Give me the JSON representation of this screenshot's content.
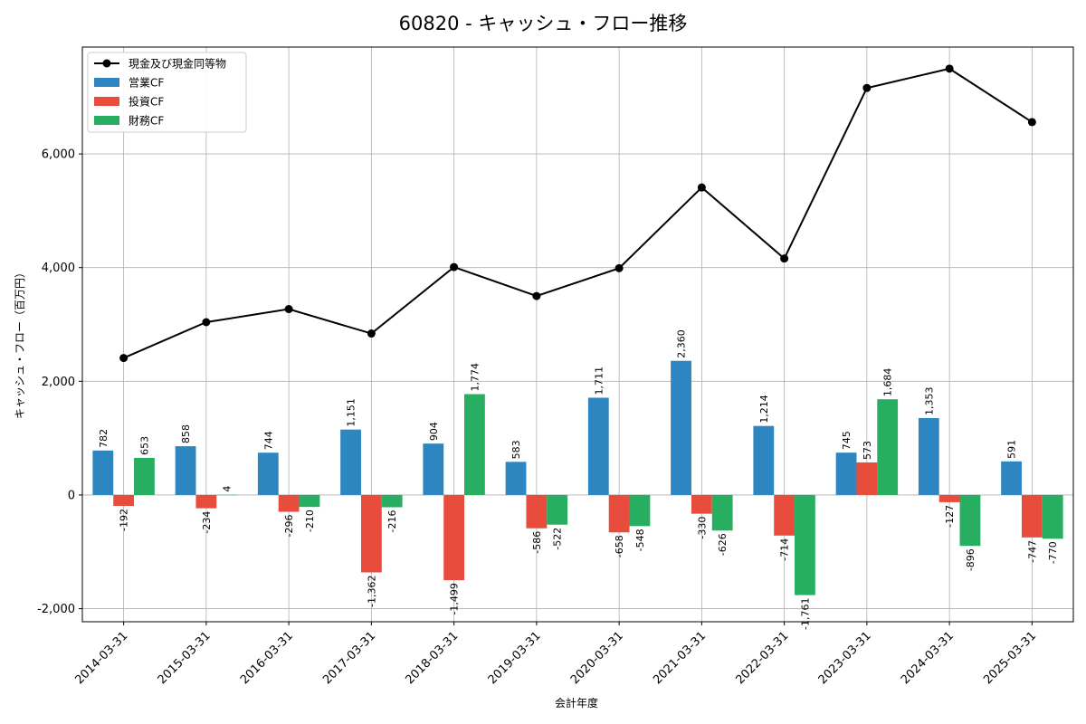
{
  "chart_data": {
    "type": "bar",
    "title": "60820 - キャッシュ・フロー推移",
    "xlabel": "会計年度",
    "ylabel": "キャッシュ・フロー（百万円）",
    "categories": [
      "2014-03-31",
      "2015-03-31",
      "2016-03-31",
      "2017-03-31",
      "2018-03-31",
      "2019-03-31",
      "2020-03-31",
      "2021-03-31",
      "2022-03-31",
      "2023-03-31",
      "2024-03-31",
      "2025-03-31"
    ],
    "ylim": [
      -2230,
      7880
    ],
    "yticks": [
      -2000,
      0,
      2000,
      4000,
      6000
    ],
    "ytick_labels": [
      "-2,000",
      "0",
      "2,000",
      "4,000",
      "6,000"
    ],
    "grid": true,
    "legend_position": "top-left",
    "line": {
      "name": "現金及び現金同等物",
      "color": "#000000",
      "values": [
        2410,
        3040,
        3270,
        2840,
        4010,
        3500,
        3990,
        5410,
        4160,
        7160,
        7500,
        6560
      ]
    },
    "series": [
      {
        "name": "営業CF",
        "color": "#2e86c1",
        "values": [
          782,
          858,
          744,
          1151,
          904,
          583,
          1711,
          2360,
          1214,
          745,
          1353,
          591
        ],
        "labels": [
          "782",
          "858",
          "744",
          "1,151",
          "904",
          "583",
          "1,711",
          "2,360",
          "1,214",
          "745",
          "1,353",
          "591"
        ]
      },
      {
        "name": "投資CF",
        "color": "#e74c3c",
        "values": [
          -192,
          -234,
          -296,
          -1362,
          -1499,
          -586,
          -658,
          -330,
          -714,
          573,
          -127,
          -747
        ],
        "labels": [
          "-192",
          "-234",
          "-296",
          "-1,362",
          "-1,499",
          "-586",
          "-658",
          "-330",
          "-714",
          "573",
          "-127",
          "-747"
        ]
      },
      {
        "name": "財務CF",
        "color": "#27ae60",
        "values": [
          653,
          4,
          -210,
          -216,
          1774,
          -522,
          -548,
          -626,
          -1761,
          1684,
          -896,
          -770
        ],
        "labels": [
          "653",
          "4",
          "-210",
          "-216",
          "1,774",
          "-522",
          "-548",
          "-626",
          "-1,761",
          "1,684",
          "-896",
          "-770"
        ]
      }
    ]
  }
}
